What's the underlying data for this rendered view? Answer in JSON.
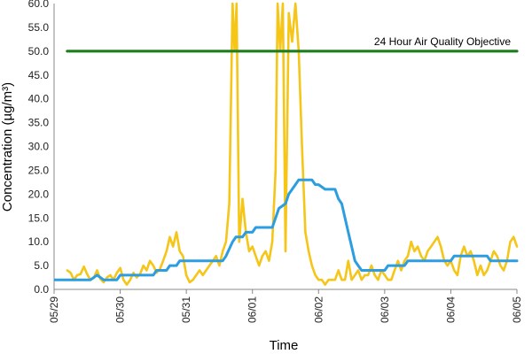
{
  "chart_data": {
    "type": "line",
    "ylabel": "Concentration (µg/m³)",
    "xlabel": "Time",
    "ylim": [
      0,
      60
    ],
    "y_ticks": [
      "0.0",
      "5.0",
      "10.0",
      "15.0",
      "20.0",
      "25.0",
      "30.0",
      "35.0",
      "40.0",
      "45.0",
      "50.0",
      "55.0",
      "60.0"
    ],
    "x_range_days": [
      0,
      7
    ],
    "x_tick_labels": [
      "05/29",
      "05/30",
      "05/31",
      "06/01",
      "06/02",
      "06/03",
      "06/04",
      "06/05"
    ],
    "grid": false,
    "series": [
      {
        "color": "#f5c518",
        "points": [
          [
            0.2,
            4
          ],
          [
            0.25,
            3.5
          ],
          [
            0.3,
            2
          ],
          [
            0.35,
            3
          ],
          [
            0.4,
            3.2
          ],
          [
            0.45,
            4.8
          ],
          [
            0.5,
            3.2
          ],
          [
            0.55,
            2
          ],
          [
            0.6,
            2.4
          ],
          [
            0.65,
            4
          ],
          [
            0.7,
            2.2
          ],
          [
            0.75,
            1.5
          ],
          [
            0.8,
            2.5
          ],
          [
            0.85,
            3
          ],
          [
            0.9,
            2
          ],
          [
            0.95,
            3.5
          ],
          [
            1.0,
            4.5
          ],
          [
            1.05,
            2
          ],
          [
            1.1,
            1
          ],
          [
            1.15,
            2
          ],
          [
            1.2,
            3.5
          ],
          [
            1.25,
            2.5
          ],
          [
            1.3,
            3.2
          ],
          [
            1.35,
            5
          ],
          [
            1.4,
            4
          ],
          [
            1.45,
            6
          ],
          [
            1.5,
            5
          ],
          [
            1.55,
            3.5
          ],
          [
            1.6,
            4.2
          ],
          [
            1.65,
            6
          ],
          [
            1.7,
            8
          ],
          [
            1.75,
            11
          ],
          [
            1.8,
            9
          ],
          [
            1.85,
            12
          ],
          [
            1.9,
            8
          ],
          [
            1.95,
            7
          ],
          [
            2.0,
            3
          ],
          [
            2.05,
            1.5
          ],
          [
            2.1,
            2
          ],
          [
            2.15,
            3
          ],
          [
            2.2,
            4
          ],
          [
            2.25,
            3
          ],
          [
            2.3,
            4
          ],
          [
            2.35,
            5
          ],
          [
            2.4,
            6
          ],
          [
            2.45,
            7
          ],
          [
            2.5,
            5
          ],
          [
            2.55,
            8
          ],
          [
            2.6,
            10
          ],
          [
            2.65,
            18
          ],
          [
            2.7,
            60
          ],
          [
            2.73,
            50
          ],
          [
            2.76,
            60
          ],
          [
            2.8,
            10
          ],
          [
            2.85,
            19
          ],
          [
            2.9,
            12
          ],
          [
            2.95,
            8
          ],
          [
            3.0,
            9
          ],
          [
            3.05,
            7
          ],
          [
            3.1,
            5
          ],
          [
            3.15,
            7
          ],
          [
            3.2,
            8
          ],
          [
            3.25,
            6
          ],
          [
            3.3,
            10
          ],
          [
            3.35,
            25
          ],
          [
            3.38,
            60
          ],
          [
            3.42,
            50
          ],
          [
            3.46,
            60
          ],
          [
            3.5,
            8
          ],
          [
            3.55,
            58
          ],
          [
            3.6,
            52
          ],
          [
            3.65,
            60
          ],
          [
            3.7,
            50
          ],
          [
            3.75,
            30
          ],
          [
            3.8,
            12
          ],
          [
            3.85,
            8
          ],
          [
            3.9,
            5
          ],
          [
            3.95,
            3
          ],
          [
            4.0,
            2
          ],
          [
            4.05,
            2
          ],
          [
            4.1,
            1
          ],
          [
            4.15,
            2
          ],
          [
            4.2,
            2
          ],
          [
            4.25,
            2
          ],
          [
            4.3,
            4
          ],
          [
            4.35,
            2
          ],
          [
            4.4,
            2
          ],
          [
            4.45,
            6
          ],
          [
            4.5,
            2
          ],
          [
            4.55,
            3
          ],
          [
            4.6,
            4
          ],
          [
            4.65,
            2
          ],
          [
            4.7,
            3
          ],
          [
            4.75,
            3
          ],
          [
            4.8,
            5
          ],
          [
            4.85,
            3
          ],
          [
            4.9,
            2
          ],
          [
            4.95,
            4
          ],
          [
            5.0,
            3
          ],
          [
            5.05,
            2
          ],
          [
            5.1,
            2
          ],
          [
            5.15,
            4
          ],
          [
            5.2,
            6
          ],
          [
            5.25,
            4
          ],
          [
            5.3,
            6
          ],
          [
            5.35,
            7
          ],
          [
            5.4,
            10
          ],
          [
            5.45,
            8
          ],
          [
            5.5,
            9
          ],
          [
            5.55,
            7
          ],
          [
            5.6,
            6
          ],
          [
            5.65,
            8
          ],
          [
            5.7,
            9
          ],
          [
            5.75,
            10
          ],
          [
            5.8,
            11
          ],
          [
            5.85,
            9
          ],
          [
            5.9,
            6
          ],
          [
            5.95,
            5
          ],
          [
            6.0,
            6
          ],
          [
            6.05,
            4
          ],
          [
            6.1,
            3
          ],
          [
            6.15,
            7
          ],
          [
            6.2,
            9
          ],
          [
            6.25,
            7
          ],
          [
            6.3,
            8
          ],
          [
            6.35,
            6
          ],
          [
            6.4,
            3
          ],
          [
            6.45,
            5
          ],
          [
            6.5,
            3
          ],
          [
            6.55,
            4
          ],
          [
            6.6,
            6
          ],
          [
            6.65,
            8
          ],
          [
            6.7,
            7
          ],
          [
            6.75,
            5
          ],
          [
            6.8,
            4
          ],
          [
            6.85,
            6
          ],
          [
            6.9,
            10
          ],
          [
            6.95,
            11
          ],
          [
            7.0,
            9
          ]
        ]
      },
      {
        "color": "#2b9de0",
        "points": [
          [
            0.0,
            2
          ],
          [
            0.55,
            2
          ],
          [
            0.65,
            3
          ],
          [
            0.75,
            2
          ],
          [
            0.95,
            2
          ],
          [
            1.0,
            3
          ],
          [
            1.5,
            3
          ],
          [
            1.55,
            4
          ],
          [
            1.7,
            4
          ],
          [
            1.75,
            5
          ],
          [
            1.85,
            5
          ],
          [
            1.9,
            6
          ],
          [
            2.55,
            6
          ],
          [
            2.6,
            7
          ],
          [
            2.7,
            10
          ],
          [
            2.75,
            11
          ],
          [
            2.85,
            11
          ],
          [
            2.9,
            12
          ],
          [
            3.0,
            12
          ],
          [
            3.05,
            13
          ],
          [
            3.3,
            13
          ],
          [
            3.35,
            15
          ],
          [
            3.4,
            17
          ],
          [
            3.5,
            18
          ],
          [
            3.55,
            20
          ],
          [
            3.6,
            21
          ],
          [
            3.65,
            22
          ],
          [
            3.7,
            23
          ],
          [
            3.9,
            23
          ],
          [
            3.95,
            22
          ],
          [
            4.0,
            22
          ],
          [
            4.1,
            21
          ],
          [
            4.25,
            21
          ],
          [
            4.3,
            19
          ],
          [
            4.35,
            18
          ],
          [
            4.4,
            15
          ],
          [
            4.45,
            12
          ],
          [
            4.5,
            9
          ],
          [
            4.55,
            6
          ],
          [
            4.6,
            5
          ],
          [
            4.65,
            4
          ],
          [
            5.0,
            4
          ],
          [
            5.05,
            5
          ],
          [
            5.3,
            5
          ],
          [
            5.35,
            6
          ],
          [
            6.0,
            6
          ],
          [
            6.05,
            7
          ],
          [
            6.55,
            7
          ],
          [
            6.6,
            6
          ],
          [
            7.0,
            6
          ]
        ]
      },
      {
        "color": "#1e7d1e",
        "points": [
          [
            0.2,
            50
          ],
          [
            7.0,
            50
          ]
        ]
      }
    ],
    "annotations": [
      {
        "text": "24 Hour Air Quality Objective",
        "x": 5.55,
        "y": 50,
        "anchor": "right"
      }
    ]
  }
}
